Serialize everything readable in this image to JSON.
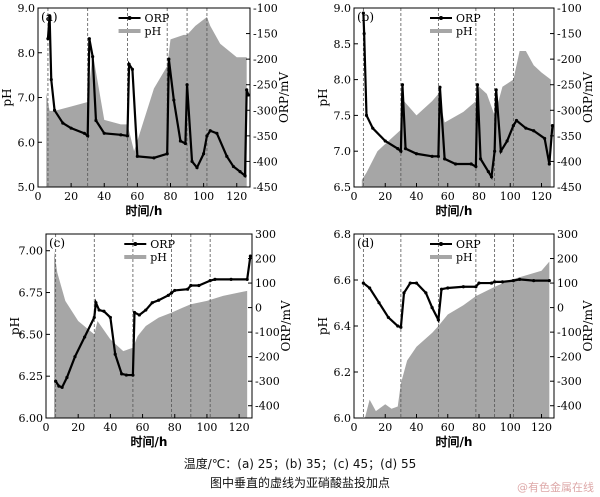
{
  "caption": {
    "line1": "温度/℃：(a) 25；(b) 35；(c) 45；(d) 55",
    "line2": "图中垂直的虚线为亚硝酸盐投加点"
  },
  "watermark": "@有色金属在线",
  "colors": {
    "ph_fill": "#a6a6a6",
    "orp_line": "#000000",
    "dashed": "#555555"
  },
  "chart_data": [
    {
      "type": "area",
      "panel_label": "(a)",
      "xlabel": "时间/h",
      "ylabel_left": "pH",
      "ylabel_right": "ORP/mV",
      "xlim": [
        0,
        128
      ],
      "ylim_left": [
        5.0,
        9.0
      ],
      "ylim_right": [
        -450,
        -100
      ],
      "x_ticks": [
        0,
        20,
        40,
        60,
        80,
        100,
        120
      ],
      "y_left_ticks": [
        "5.0",
        "6.0",
        "7.0",
        "8.0",
        "9.0"
      ],
      "y_right_ticks": [
        "-450",
        "-400",
        "-350",
        "-300",
        "-250",
        "-200",
        "-150",
        "-100"
      ],
      "legend": [
        "ORP",
        "pH"
      ],
      "legend_position": "top-center",
      "nitrite_dosing_h": [
        6,
        30,
        54,
        78,
        90,
        102
      ],
      "series": [
        {
          "name": "pH",
          "x": [
            5,
            7,
            10,
            20,
            30,
            33,
            40,
            50,
            54,
            56,
            58,
            70,
            78,
            80,
            88,
            90,
            95,
            102,
            104,
            110,
            120,
            126
          ],
          "y": [
            7.1,
            6.7,
            6.7,
            6.8,
            6.9,
            8.0,
            6.5,
            6.4,
            6.4,
            6.1,
            5.8,
            7.2,
            7.7,
            8.3,
            8.4,
            8.4,
            8.6,
            8.8,
            8.6,
            8.2,
            7.9,
            7.9
          ]
        },
        {
          "name": "ORP",
          "x": [
            6,
            7,
            8,
            10,
            15,
            20,
            28,
            30,
            31,
            33,
            35,
            40,
            50,
            54,
            55,
            57,
            60,
            70,
            78,
            79,
            82,
            86,
            89,
            90,
            93,
            96,
            100,
            102,
            104,
            108,
            114,
            118,
            122,
            125,
            126,
            127
          ],
          "y": [
            -160,
            -115,
            -240,
            -300,
            -325,
            -335,
            -345,
            -350,
            -160,
            -195,
            -320,
            -345,
            -348,
            -350,
            -210,
            -220,
            -390,
            -393,
            -385,
            -200,
            -280,
            -360,
            -365,
            -250,
            -400,
            -412,
            -385,
            -350,
            -340,
            -345,
            -390,
            -410,
            -420,
            -428,
            -260,
            -270
          ]
        }
      ]
    },
    {
      "type": "area",
      "panel_label": "(b)",
      "xlabel": "时间/h",
      "ylabel_left": "pH",
      "ylabel_right": "ORP/mV",
      "xlim": [
        0,
        128
      ],
      "ylim_left": [
        6.5,
        9.0
      ],
      "ylim_right": [
        -450,
        -100
      ],
      "x_ticks": [
        0,
        20,
        40,
        60,
        80,
        100,
        120
      ],
      "y_left_ticks": [
        "6.5",
        "7.0",
        "7.5",
        "8.0",
        "8.5",
        "9.0"
      ],
      "y_right_ticks": [
        "-450",
        "-400",
        "-350",
        "-300",
        "-250",
        "-200",
        "-150",
        "-100"
      ],
      "legend": [
        "ORP",
        "pH"
      ],
      "legend_position": "top-center",
      "nitrite_dosing_h": [
        6,
        30,
        54,
        78,
        90,
        102
      ],
      "series": [
        {
          "name": "pH",
          "x": [
            5,
            8,
            15,
            25,
            30,
            32,
            40,
            50,
            54,
            58,
            70,
            78,
            80,
            85,
            90,
            95,
            102,
            106,
            110,
            115,
            120,
            126
          ],
          "y": [
            6.6,
            6.7,
            7.0,
            7.2,
            7.3,
            7.7,
            7.5,
            7.7,
            7.8,
            7.4,
            7.55,
            7.7,
            7.9,
            7.8,
            7.5,
            7.9,
            8.0,
            8.4,
            8.4,
            8.2,
            8.1,
            8.0
          ]
        },
        {
          "name": "ORP",
          "x": [
            6,
            6.5,
            8,
            12,
            20,
            28,
            30,
            31,
            33,
            40,
            50,
            54,
            55,
            58,
            65,
            75,
            78,
            79,
            81,
            86,
            88,
            90,
            91,
            94,
            98,
            102,
            104,
            110,
            115,
            122,
            125,
            127
          ],
          "y": [
            -110,
            -150,
            -310,
            -335,
            -360,
            -375,
            -380,
            -250,
            -375,
            -385,
            -390,
            -390,
            -255,
            -395,
            -405,
            -405,
            -410,
            -250,
            -395,
            -420,
            -430,
            -380,
            -260,
            -380,
            -360,
            -330,
            -320,
            -335,
            -340,
            -355,
            -405,
            -330
          ]
        }
      ]
    },
    {
      "type": "area",
      "panel_label": "(c)",
      "xlabel": "时间/h",
      "ylabel_left": "pH",
      "ylabel_right": "ORP/mV",
      "xlim": [
        0,
        128
      ],
      "ylim_left": [
        6.0,
        7.1
      ],
      "ylim_right": [
        -450,
        300
      ],
      "x_ticks": [
        0,
        20,
        40,
        60,
        80,
        100,
        120
      ],
      "y_left_ticks": [
        "6.00",
        "6.25",
        "6.50",
        "6.75",
        "7.00"
      ],
      "y_right_ticks": [
        "-400",
        "-300",
        "-200",
        "-100",
        "0",
        "100",
        "200",
        "300"
      ],
      "legend": [
        "ORP",
        "pH"
      ],
      "legend_position": "top-center",
      "nitrite_dosing_h": [
        6,
        30,
        54,
        78,
        90,
        102
      ],
      "series": [
        {
          "name": "pH",
          "x": [
            5,
            7,
            12,
            20,
            30,
            32,
            40,
            48,
            54,
            57,
            62,
            70,
            78,
            85,
            90,
            100,
            110,
            120,
            125
          ],
          "y": [
            7.0,
            6.87,
            6.7,
            6.58,
            6.5,
            6.58,
            6.47,
            6.4,
            6.42,
            6.49,
            6.55,
            6.6,
            6.63,
            6.66,
            6.68,
            6.7,
            6.73,
            6.75,
            6.76
          ]
        },
        {
          "name": "ORP",
          "x": [
            6,
            8,
            10,
            13,
            18,
            24,
            30,
            31,
            33,
            36,
            40,
            43,
            47,
            50,
            54,
            55,
            58,
            62,
            66,
            70,
            76,
            78,
            80,
            88,
            90,
            95,
            102,
            105,
            115,
            125,
            127
          ],
          "y": [
            -300,
            -320,
            -325,
            -285,
            -200,
            -120,
            -40,
            20,
            -10,
            -15,
            -40,
            -190,
            -270,
            -275,
            -275,
            -20,
            -30,
            -10,
            20,
            30,
            50,
            60,
            70,
            75,
            90,
            90,
            110,
            115,
            115,
            115,
            210
          ]
        }
      ]
    },
    {
      "type": "area",
      "panel_label": "(d)",
      "xlabel": "时间/h",
      "ylabel_left": "pH",
      "ylabel_right": "ORP/mV",
      "xlim": [
        0,
        128
      ],
      "ylim_left": [
        6.0,
        6.8
      ],
      "ylim_right": [
        -450,
        300
      ],
      "x_ticks": [
        0,
        20,
        40,
        60,
        80,
        100,
        120
      ],
      "y_left_ticks": [
        "6.0",
        "6.2",
        "6.4",
        "6.6",
        "6.8"
      ],
      "y_right_ticks": [
        "-400",
        "-300",
        "-200",
        "-100",
        "0",
        "100",
        "200",
        "300"
      ],
      "legend": [
        "ORP",
        "pH"
      ],
      "legend_position": "top-center",
      "nitrite_dosing_h": [
        6,
        30,
        54,
        78,
        90,
        102
      ],
      "series": [
        {
          "name": "pH",
          "x": [
            5,
            7,
            10,
            14,
            20,
            24,
            28,
            30,
            34,
            40,
            50,
            54,
            60,
            70,
            78,
            90,
            100,
            110,
            120,
            125
          ],
          "y": [
            6.0,
            6.0,
            6.08,
            6.03,
            6.06,
            6.04,
            6.05,
            6.15,
            6.25,
            6.31,
            6.37,
            6.4,
            6.45,
            6.49,
            6.53,
            6.57,
            6.6,
            6.62,
            6.64,
            6.68
          ]
        },
        {
          "name": "ORP",
          "x": [
            6,
            10,
            16,
            22,
            28,
            30,
            32,
            36,
            40,
            46,
            50,
            54,
            56,
            60,
            70,
            78,
            80,
            88,
            90,
            95,
            102,
            106,
            115,
            125
          ],
          "y": [
            100,
            80,
            20,
            -40,
            -75,
            -80,
            60,
            100,
            100,
            60,
            0,
            -50,
            75,
            80,
            85,
            85,
            100,
            100,
            105,
            105,
            110,
            115,
            110,
            110
          ]
        }
      ]
    }
  ]
}
